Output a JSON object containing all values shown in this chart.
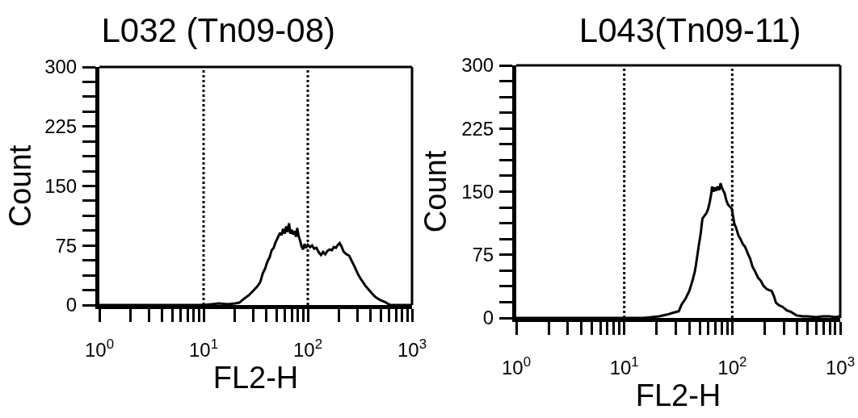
{
  "chart_data": [
    {
      "type": "line",
      "title": "L032 (Tn09-08)",
      "xlabel": "FL2-H",
      "ylabel": "Count",
      "log": "x",
      "x": [
        1,
        10,
        12,
        14,
        17,
        20,
        22,
        25,
        27,
        30,
        33,
        35,
        37,
        39,
        41,
        43,
        45,
        47,
        49,
        52,
        54,
        56,
        58,
        60,
        62,
        64,
        66,
        68,
        70,
        72,
        75,
        77,
        79,
        82,
        84,
        87,
        90,
        93,
        96,
        100,
        105,
        110,
        115,
        121,
        128,
        134,
        140,
        147,
        154,
        162,
        170,
        178,
        186,
        195,
        202,
        210,
        221,
        235,
        250,
        265,
        282,
        300,
        318,
        338,
        358,
        380,
        404,
        430,
        456,
        500,
        547,
        580,
        620,
        1000
      ],
      "series": [
        {
          "color": "#000000",
          "values": [
            0,
            0,
            1,
            2,
            1,
            2,
            3,
            9,
            12,
            18,
            24,
            29,
            40,
            46,
            55,
            60,
            69,
            72,
            79,
            86,
            91,
            88,
            96,
            90,
            99,
            92,
            103,
            90,
            95,
            89,
            93,
            86,
            97,
            86,
            82,
            74,
            70,
            77,
            72,
            76,
            73,
            75,
            71,
            72,
            66,
            63,
            67,
            64,
            68,
            70,
            69,
            73,
            72,
            76,
            78,
            74,
            67,
            64,
            62,
            55,
            48,
            40,
            34,
            29,
            24,
            20,
            16,
            12,
            9,
            6,
            4,
            2,
            0,
            0
          ]
        }
      ],
      "xlim": [
        1,
        1000
      ],
      "xticks": [
        {
          "value": 1,
          "label": "10$^{0}$"
        },
        {
          "value": 2,
          "label": null
        },
        {
          "value": 3,
          "label": null
        },
        {
          "value": 4,
          "label": null
        },
        {
          "value": 5,
          "label": null
        },
        {
          "value": 6,
          "label": null
        },
        {
          "value": 7,
          "label": null
        },
        {
          "value": 8,
          "label": null
        },
        {
          "value": 9,
          "label": null
        },
        {
          "value": 10,
          "label": "10$^{1}$"
        },
        {
          "value": 20,
          "label": null
        },
        {
          "value": 30,
          "label": null
        },
        {
          "value": 40,
          "label": null
        },
        {
          "value": 50,
          "label": null
        },
        {
          "value": 60,
          "label": null
        },
        {
          "value": 70,
          "label": null
        },
        {
          "value": 80,
          "label": null
        },
        {
          "value": 90,
          "label": null
        },
        {
          "value": 100,
          "label": "10$^{2}$"
        },
        {
          "value": 200,
          "label": null
        },
        {
          "value": 300,
          "label": null
        },
        {
          "value": 400,
          "label": null
        },
        {
          "value": 500,
          "label": null
        },
        {
          "value": 600,
          "label": null
        },
        {
          "value": 700,
          "label": null
        },
        {
          "value": 800,
          "label": null
        },
        {
          "value": 900,
          "label": null
        },
        {
          "value": 1000,
          "label": "10$^{3}$"
        }
      ],
      "ylim": [
        0,
        300
      ],
      "yticks": [
        0,
        {
          "value": 18.75,
          "label": null
        },
        {
          "value": 37.5,
          "label": null
        },
        {
          "value": 56.25,
          "label": null
        },
        75,
        {
          "value": 93.75,
          "label": null
        },
        {
          "value": 112.5,
          "label": null
        },
        {
          "value": 131.25,
          "label": null
        },
        150,
        {
          "value": 168.75,
          "label": null
        },
        {
          "value": 187.5,
          "label": null
        },
        {
          "value": 206.25,
          "label": null
        },
        225,
        {
          "value": 243.75,
          "label": null
        },
        {
          "value": 262.5,
          "label": null
        },
        {
          "value": 281.25,
          "label": null
        },
        300
      ],
      "ref_lines": [
        {
          "axis": "x",
          "value": 10,
          "color": "#000000",
          "line_style": "dotted"
        },
        {
          "axis": "x",
          "value": 100,
          "color": "#000000",
          "line_style": "dotted"
        }
      ]
    },
    {
      "type": "line",
      "title": "L043(Tn09-11)",
      "xlabel": "FL2-H",
      "ylabel": "Count",
      "log": "x",
      "x": [
        1,
        15,
        18,
        21,
        25,
        28,
        32,
        34,
        37,
        40,
        43,
        45,
        46,
        48,
        49,
        51,
        53,
        55,
        58,
        60,
        62,
        64,
        65,
        67,
        69,
        71,
        73,
        76,
        78,
        80,
        82,
        85,
        88,
        91,
        95,
        99,
        102,
        105,
        108,
        114,
        119,
        125,
        132,
        141,
        147,
        154,
        163,
        173,
        184,
        195,
        210,
        232,
        243,
        254,
        272,
        294,
        320,
        351,
        394,
        450,
        499,
        600,
        700,
        794,
        900,
        1000
      ],
      "series": [
        {
          "color": "#000000",
          "values": [
            0,
            0,
            1,
            2,
            4,
            6,
            8,
            16,
            23,
            32,
            45,
            55,
            62,
            78,
            86,
            100,
            118,
            121,
            125,
            130,
            138,
            148,
            156,
            150,
            155,
            151,
            156,
            152,
            160,
            155,
            152,
            148,
            140,
            135,
            132,
            130,
            120,
            111,
            108,
            98,
            94,
            88,
            84,
            75,
            70,
            61,
            55,
            48,
            44,
            38,
            34,
            32,
            26,
            18,
            15,
            13,
            9,
            7,
            3,
            2,
            2,
            1,
            2,
            2,
            1,
            2
          ]
        }
      ],
      "xlim": [
        1,
        1000
      ],
      "xticks": [
        {
          "value": 1,
          "label": "10$^{0}$"
        },
        {
          "value": 2,
          "label": null
        },
        {
          "value": 3,
          "label": null
        },
        {
          "value": 4,
          "label": null
        },
        {
          "value": 5,
          "label": null
        },
        {
          "value": 6,
          "label": null
        },
        {
          "value": 7,
          "label": null
        },
        {
          "value": 8,
          "label": null
        },
        {
          "value": 9,
          "label": null
        },
        {
          "value": 10,
          "label": "10$^{1}$"
        },
        {
          "value": 20,
          "label": null
        },
        {
          "value": 30,
          "label": null
        },
        {
          "value": 40,
          "label": null
        },
        {
          "value": 50,
          "label": null
        },
        {
          "value": 60,
          "label": null
        },
        {
          "value": 70,
          "label": null
        },
        {
          "value": 80,
          "label": null
        },
        {
          "value": 90,
          "label": null
        },
        {
          "value": 100,
          "label": "10$^{2}$"
        },
        {
          "value": 200,
          "label": null
        },
        {
          "value": 300,
          "label": null
        },
        {
          "value": 400,
          "label": null
        },
        {
          "value": 500,
          "label": null
        },
        {
          "value": 600,
          "label": null
        },
        {
          "value": 700,
          "label": null
        },
        {
          "value": 800,
          "label": null
        },
        {
          "value": 900,
          "label": null
        },
        {
          "value": 1000,
          "label": "10$^{3}$"
        }
      ],
      "ylim": [
        0,
        300
      ],
      "yticks": [
        0,
        {
          "value": 18.75,
          "label": null
        },
        {
          "value": 37.5,
          "label": null
        },
        {
          "value": 56.25,
          "label": null
        },
        75,
        {
          "value": 93.75,
          "label": null
        },
        {
          "value": 112.5,
          "label": null
        },
        {
          "value": 131.25,
          "label": null
        },
        150,
        {
          "value": 168.75,
          "label": null
        },
        {
          "value": 187.5,
          "label": null
        },
        {
          "value": 206.25,
          "label": null
        },
        225,
        {
          "value": 243.75,
          "label": null
        },
        {
          "value": 262.5,
          "label": null
        },
        {
          "value": 281.25,
          "label": null
        },
        300
      ],
      "ref_lines": [
        {
          "axis": "x",
          "value": 10,
          "color": "#000000",
          "line_style": "dotted"
        },
        {
          "axis": "x",
          "value": 100,
          "color": "#000000",
          "line_style": "dotted"
        }
      ]
    }
  ]
}
